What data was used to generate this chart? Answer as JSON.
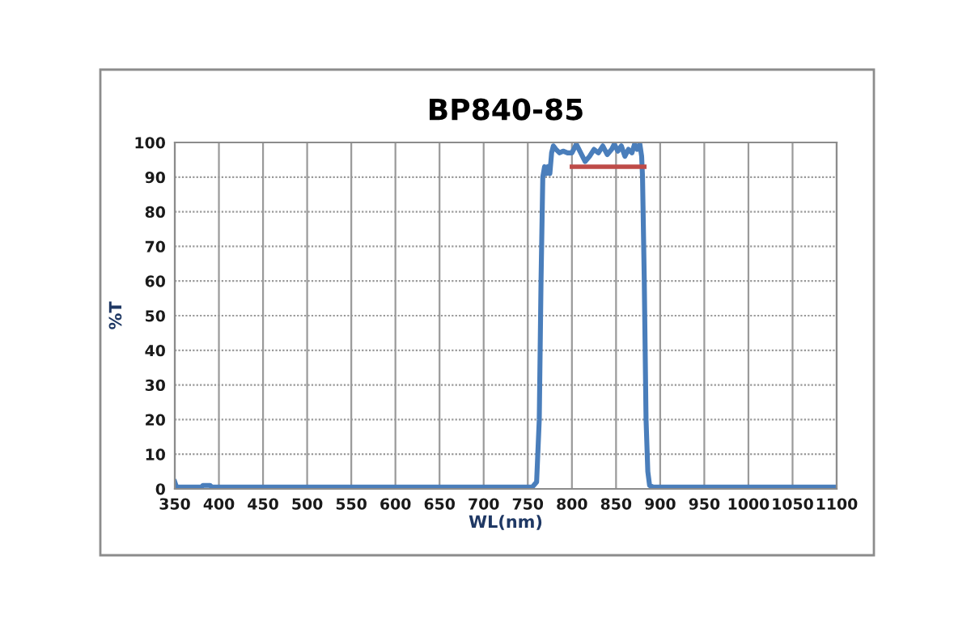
{
  "chart_data": {
    "type": "line",
    "title": "BP840-85",
    "xlabel": "WL(nm)",
    "ylabel": "%T",
    "xlim": [
      350,
      1100
    ],
    "xticks": [
      350,
      400,
      450,
      500,
      550,
      600,
      650,
      700,
      750,
      800,
      850,
      900,
      950,
      1000,
      1050,
      1100
    ],
    "ylim": [
      0,
      100
    ],
    "yticks": [
      0,
      10,
      20,
      30,
      40,
      50,
      60,
      70,
      80,
      90,
      100
    ],
    "grid": true,
    "marker": "none",
    "line_style": "solid",
    "series": [
      {
        "color": "#4a7ebb",
        "x": [
          350,
          352,
          380,
          382,
          390,
          392,
          400,
          755,
          760,
          763,
          765,
          767,
          769,
          771,
          773,
          775,
          777,
          779,
          782,
          786,
          790,
          795,
          800,
          805,
          810,
          815,
          820,
          825,
          830,
          835,
          840,
          845,
          848,
          852,
          856,
          860,
          864,
          868,
          871,
          874,
          877,
          879,
          880,
          882,
          884,
          886,
          888,
          892,
          1100
        ],
        "values": [
          2,
          0.5,
          0.5,
          1,
          1,
          0.5,
          0.5,
          0.5,
          2,
          20,
          60,
          90,
          93,
          91,
          93,
          91,
          97,
          99,
          98,
          97,
          97.5,
          97,
          97,
          99.5,
          97,
          94.5,
          96,
          98,
          97,
          99,
          96.5,
          98,
          99.5,
          97.5,
          99,
          96,
          98,
          97,
          99.5,
          98,
          99.5,
          96,
          90,
          60,
          20,
          5,
          1,
          0.5,
          0.5
        ]
      },
      {
        "type": "line",
        "color": "#be4b48",
        "x": [
          800,
          882
        ],
        "values": [
          93,
          93
        ]
      }
    ]
  }
}
